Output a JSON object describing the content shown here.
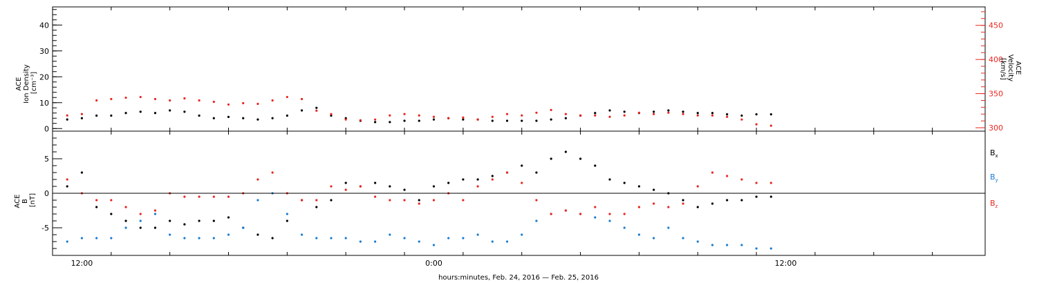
{
  "chart_data": [
    {
      "type": "scatter",
      "panel": "ace-density-velocity",
      "ylabel_lines": [
        "ACE",
        "Ion Density",
        "[cm⁻³]"
      ],
      "ylim": [
        -1,
        47
      ],
      "yticks": [
        "0",
        "10",
        "20",
        "30",
        "40"
      ],
      "ytick_values": [
        0,
        10,
        20,
        30,
        40
      ],
      "ylabel_right_lines": [
        "ACE",
        "Velocity",
        "[km/s]"
      ],
      "ylim_right": [
        295,
        477
      ],
      "yticks_right": [
        "300",
        "350",
        "400",
        "450"
      ],
      "ytick_values_right": [
        300,
        350,
        400,
        450
      ],
      "series": [
        {
          "color": "#000000",
          "axis": "left",
          "x": [
            -12.5,
            -12.0,
            -11.5,
            -11.0,
            -10.5,
            -10.0,
            -9.5,
            -9.0,
            -8.5,
            -8.0,
            -7.5,
            -7.0,
            -6.5,
            -6.0,
            -5.5,
            -5.0,
            -4.5,
            -4.0,
            -3.5,
            -3.0,
            -2.5,
            -2.0,
            -1.5,
            -1.0,
            -0.5,
            0.0,
            0.5,
            1.0,
            1.5,
            2.0,
            2.5,
            3.0,
            3.5,
            4.0,
            4.5,
            5.0,
            5.5,
            6.0,
            6.5,
            7.0,
            7.5,
            8.0,
            8.5,
            9.0,
            9.5,
            10.0,
            10.5,
            11.0,
            11.5
          ],
          "y": [
            3.5,
            4,
            5,
            5,
            6,
            6.5,
            6,
            7,
            6.5,
            5,
            4,
            4.5,
            4,
            3.5,
            4,
            5,
            7,
            8,
            5,
            4,
            3,
            2.5,
            2.5,
            3,
            3,
            3.5,
            4,
            3.5,
            3.5,
            3,
            3,
            3,
            3,
            3.5,
            4,
            5,
            6,
            7,
            6.5,
            6,
            6.5,
            7,
            6.5,
            6,
            6,
            5.5,
            5,
            5.5,
            5.5
          ]
        },
        {
          "color": "#e8261f",
          "axis": "right",
          "x": [
            -12.5,
            -12.0,
            -11.5,
            -11.0,
            -10.5,
            -10.0,
            -9.5,
            -9.0,
            -8.5,
            -8.0,
            -7.5,
            -7.0,
            -6.5,
            -6.0,
            -5.5,
            -5.0,
            -4.5,
            -4.0,
            -3.5,
            -3.0,
            -2.5,
            -2.0,
            -1.5,
            -1.0,
            -0.5,
            0.0,
            0.5,
            1.0,
            1.5,
            2.0,
            2.5,
            3.0,
            3.5,
            4.0,
            4.5,
            5.0,
            5.5,
            6.0,
            6.5,
            7.0,
            7.5,
            8.0,
            8.5,
            9.0,
            9.5,
            10.0,
            10.5,
            11.0,
            11.5
          ],
          "y": [
            318,
            320,
            340,
            342,
            344,
            345,
            342,
            340,
            343,
            340,
            338,
            334,
            336,
            335,
            340,
            345,
            342,
            325,
            320,
            312,
            311,
            312,
            318,
            320,
            318,
            316,
            314,
            315,
            312,
            316,
            320,
            318,
            322,
            326,
            320,
            318,
            318,
            316,
            318,
            322,
            320,
            322,
            320,
            318,
            318,
            316,
            312,
            305,
            303
          ]
        }
      ]
    },
    {
      "type": "scatter",
      "panel": "ace-magnetic-field",
      "ylabel_lines": [
        "ACE",
        "B",
        "[nT]"
      ],
      "ylim": [
        -9,
        9
      ],
      "yticks": [
        "-5",
        "0",
        "5"
      ],
      "ytick_values": [
        -5,
        0,
        5
      ],
      "zero_line": true,
      "legend_position": "right",
      "series": [
        {
          "name": "Bx",
          "color": "#000000",
          "x": [
            -12.5,
            -12.0,
            -11.5,
            -11.0,
            -10.5,
            -10.0,
            -9.5,
            -9.0,
            -8.5,
            -8.0,
            -7.5,
            -7.0,
            -6.5,
            -6.0,
            -5.5,
            -5.0,
            -4.5,
            -4.0,
            -3.5,
            -3.0,
            -2.5,
            -2.0,
            -1.5,
            -1.0,
            -0.5,
            0.0,
            0.5,
            1.0,
            1.5,
            2.0,
            2.5,
            3.0,
            3.5,
            4.0,
            4.5,
            5.0,
            5.5,
            6.0,
            6.5,
            7.0,
            7.5,
            8.0,
            8.5,
            9.0,
            9.5,
            10.0,
            10.5,
            11.0,
            11.5
          ],
          "y": [
            1,
            3,
            -2,
            -3,
            -4,
            -5,
            -5,
            -4,
            -4.5,
            -4,
            -4,
            -3.5,
            -5,
            -6,
            -6.5,
            -4,
            -1,
            -2,
            -1,
            1.5,
            1,
            1.5,
            1,
            0.5,
            -1,
            1,
            1.5,
            2,
            2,
            2.5,
            3,
            4,
            3,
            5,
            6,
            5,
            4,
            2,
            1.5,
            1,
            0.5,
            0,
            -1,
            -2,
            -1.5,
            -1,
            -1,
            -0.5,
            -0.5
          ]
        },
        {
          "name": "By",
          "color": "#1a7bd0",
          "x": [
            -12.5,
            -12.0,
            -11.5,
            -11.0,
            -10.5,
            -10.0,
            -9.5,
            -9.0,
            -8.5,
            -8.0,
            -7.5,
            -7.0,
            -6.5,
            -6.0,
            -5.5,
            -5.0,
            -4.5,
            -4.0,
            -3.5,
            -3.0,
            -2.5,
            -2.0,
            -1.5,
            -1.0,
            -0.5,
            0.0,
            0.5,
            1.0,
            1.5,
            2.0,
            2.5,
            3.0,
            3.5,
            4.0,
            4.5,
            5.0,
            5.5,
            6.0,
            6.5,
            7.0,
            7.5,
            8.0,
            8.5,
            9.0,
            9.5,
            10.0,
            10.5,
            11.0,
            11.5
          ],
          "y": [
            -7,
            -6.5,
            -6.5,
            -6.5,
            -5,
            -4,
            -3,
            -6,
            -6.5,
            -6.5,
            -6.5,
            -6,
            -5,
            -1,
            0,
            -3,
            -6,
            -6.5,
            -6.5,
            -6.5,
            -7,
            -7,
            -6,
            -6.5,
            -7,
            -7.5,
            -6.5,
            -6.5,
            -6,
            -7,
            -7,
            -6,
            -4,
            -3,
            -2.5,
            -3,
            -3.5,
            -4,
            -5,
            -6,
            -6.5,
            -5,
            -6.5,
            -7,
            -7.5,
            -7.5,
            -7.5,
            -8,
            -8
          ]
        },
        {
          "name": "Bz",
          "color": "#e8261f",
          "x": [
            -12.5,
            -12.0,
            -11.5,
            -11.0,
            -10.5,
            -10.0,
            -9.5,
            -9.0,
            -8.5,
            -8.0,
            -7.5,
            -7.0,
            -6.5,
            -6.0,
            -5.5,
            -5.0,
            -4.5,
            -4.0,
            -3.5,
            -3.0,
            -2.5,
            -2.0,
            -1.5,
            -1.0,
            -0.5,
            0.0,
            0.5,
            1.0,
            1.5,
            2.0,
            2.5,
            3.0,
            3.5,
            4.0,
            4.5,
            5.0,
            5.5,
            6.0,
            6.5,
            7.0,
            7.5,
            8.0,
            8.5,
            9.0,
            9.5,
            10.0,
            10.5,
            11.0,
            11.5
          ],
          "y": [
            2,
            0,
            -1,
            -1,
            -2,
            -3,
            -2.5,
            0,
            -0.5,
            -0.5,
            -0.5,
            -0.5,
            0,
            2,
            3,
            0,
            -1,
            -1,
            1,
            0.5,
            1,
            -0.5,
            -1,
            -1,
            -1.5,
            -1,
            0,
            -1,
            1,
            2,
            3,
            1.5,
            -1,
            -3,
            -2.5,
            -3,
            -2,
            -3,
            -3,
            -2,
            -1.5,
            -2,
            -1.5,
            1,
            3,
            2.5,
            2,
            1.5,
            1.5
          ]
        }
      ]
    }
  ],
  "shared_x": {
    "xlabel": "hours:minutes, Feb. 24, 2016 — Feb. 25, 2016",
    "xlim": [
      -13.0,
      18.8
    ],
    "xticks": [
      "12:00",
      "0:00",
      "12:00"
    ],
    "xtick_values": [
      -12,
      0,
      12
    ]
  }
}
